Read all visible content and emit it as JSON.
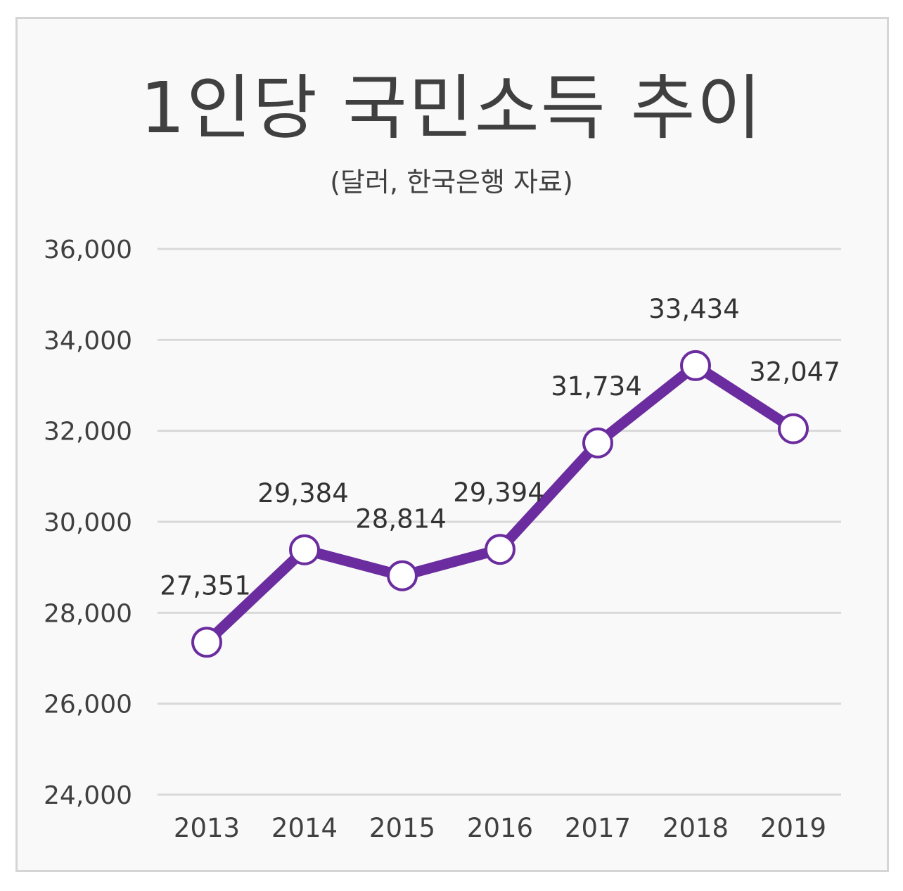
{
  "chart_data": {
    "type": "line",
    "title": "1인당 국민소득 추이",
    "subtitle": "(달러, 한국은행 자료)",
    "xlabel": "",
    "ylabel": "",
    "categories": [
      "2013",
      "2014",
      "2015",
      "2016",
      "2017",
      "2018",
      "2019"
    ],
    "series": [
      {
        "name": "1인당 국민소득",
        "values": [
          27351,
          29384,
          28814,
          29394,
          31734,
          33434,
          32047
        ]
      }
    ],
    "data_labels": [
      "27,351",
      "29,384",
      "28,814",
      "29,394",
      "31,734",
      "33,434",
      "32,047"
    ],
    "ylim": [
      24000,
      36000
    ],
    "yticks": [
      24000,
      26000,
      28000,
      30000,
      32000,
      34000,
      36000
    ],
    "ytick_labels": [
      "24,000",
      "26,000",
      "28,000",
      "30,000",
      "32,000",
      "34,000",
      "36,000"
    ],
    "grid": true,
    "legend": "none"
  },
  "colors": {
    "line": "#6a2c9e",
    "marker_fill": "#ffffff",
    "grid": "#d9d9d9",
    "text": "#404040"
  }
}
